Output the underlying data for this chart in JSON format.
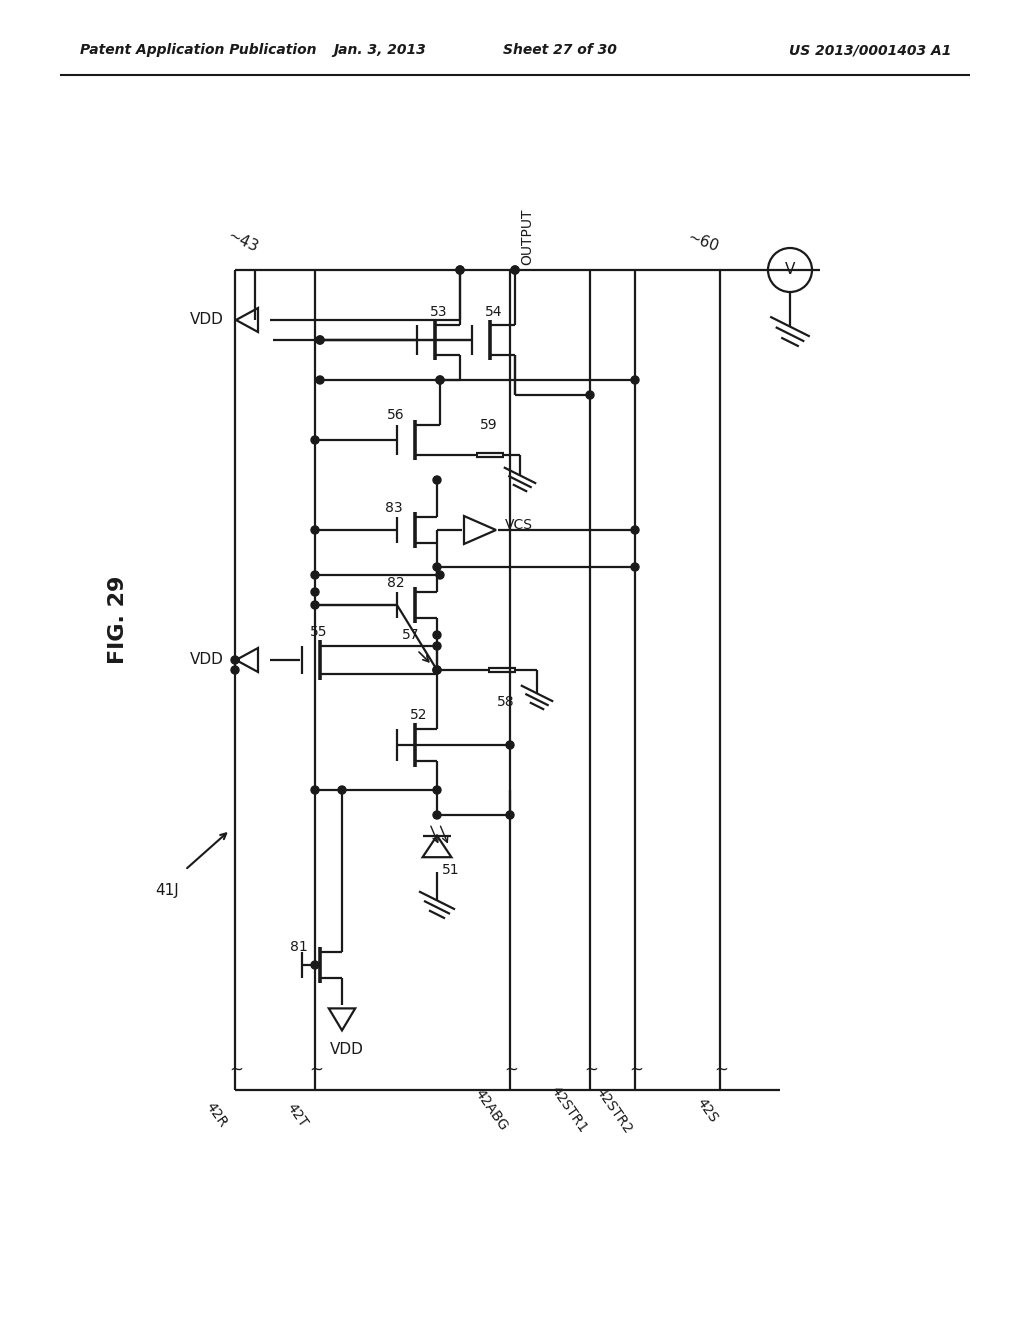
{
  "title_left": "Patent Application Publication",
  "title_mid": "Jan. 3, 2013",
  "title_sheet": "Sheet 27 of 30",
  "title_right": "US 2013/0001403 A1",
  "fig_label": "FIG. 29",
  "background": "#ffffff",
  "line_color": "#1a1a1a",
  "lw": 1.6
}
